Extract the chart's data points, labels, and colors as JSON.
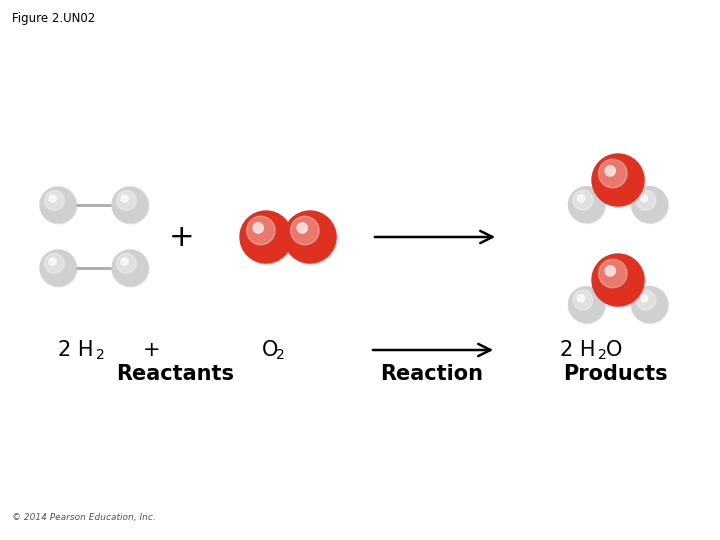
{
  "title": "Figure 2.UN02",
  "background_color": "#ffffff",
  "hydrogen_color": "#d0d0d0",
  "hydrogen_edge_color": "#b0b0b0",
  "oxygen_color": "#e03020",
  "oxygen_edge_color": "#c02010",
  "bond_color": "#aaaaaa",
  "text_color": "#000000",
  "copyright": "© 2014 Pearson Education, Inc.",
  "H_r": 18,
  "O_r": 26,
  "labels": {
    "reactants": "Reactants",
    "reaction": "Reaction",
    "products": "Products"
  }
}
